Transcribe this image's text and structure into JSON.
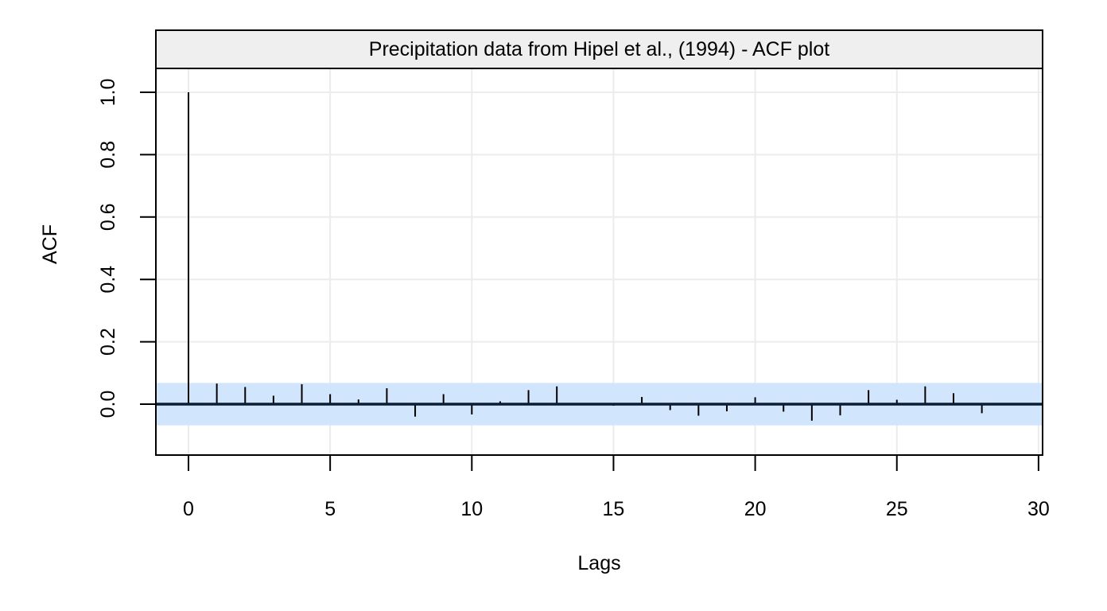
{
  "chart_data": {
    "type": "bar",
    "subtype": "acf-stem",
    "title": "Precipitation data from Hipel et al., (1994) - ACF plot",
    "xlabel": "Lags",
    "ylabel": "ACF",
    "xlim": [
      -1.15,
      30.15
    ],
    "ylim": [
      -0.164,
      1.08
    ],
    "xticks": [
      0,
      5,
      10,
      15,
      20,
      25,
      30
    ],
    "xtick_labels": [
      "0",
      "5",
      "10",
      "15",
      "20",
      "25",
      "30"
    ],
    "yticks": [
      0.0,
      0.2,
      0.4,
      0.6,
      0.8,
      1.0
    ],
    "ytick_labels": [
      "0.0",
      "0.2",
      "0.4",
      "0.6",
      "0.8",
      "1.0"
    ],
    "grid": true,
    "confidence_band": {
      "upper": 0.068,
      "lower": -0.068,
      "color": "#cfe5fc"
    },
    "zero_line_color": "#0b1d36",
    "bar_color": "#000000",
    "strip_color": "#efefef",
    "lags": [
      0,
      1,
      2,
      3,
      4,
      5,
      6,
      7,
      8,
      9,
      10,
      11,
      12,
      13,
      14,
      15,
      16,
      17,
      18,
      19,
      20,
      21,
      22,
      23,
      24,
      25,
      26,
      27,
      28
    ],
    "values": [
      1.0,
      0.066,
      0.055,
      0.027,
      0.064,
      0.032,
      0.015,
      0.051,
      -0.04,
      0.032,
      -0.033,
      0.009,
      0.045,
      0.057,
      0.003,
      -0.005,
      0.023,
      -0.019,
      -0.037,
      -0.023,
      0.022,
      -0.024,
      -0.053,
      -0.036,
      0.045,
      0.014,
      0.057,
      0.035,
      -0.029
    ]
  }
}
